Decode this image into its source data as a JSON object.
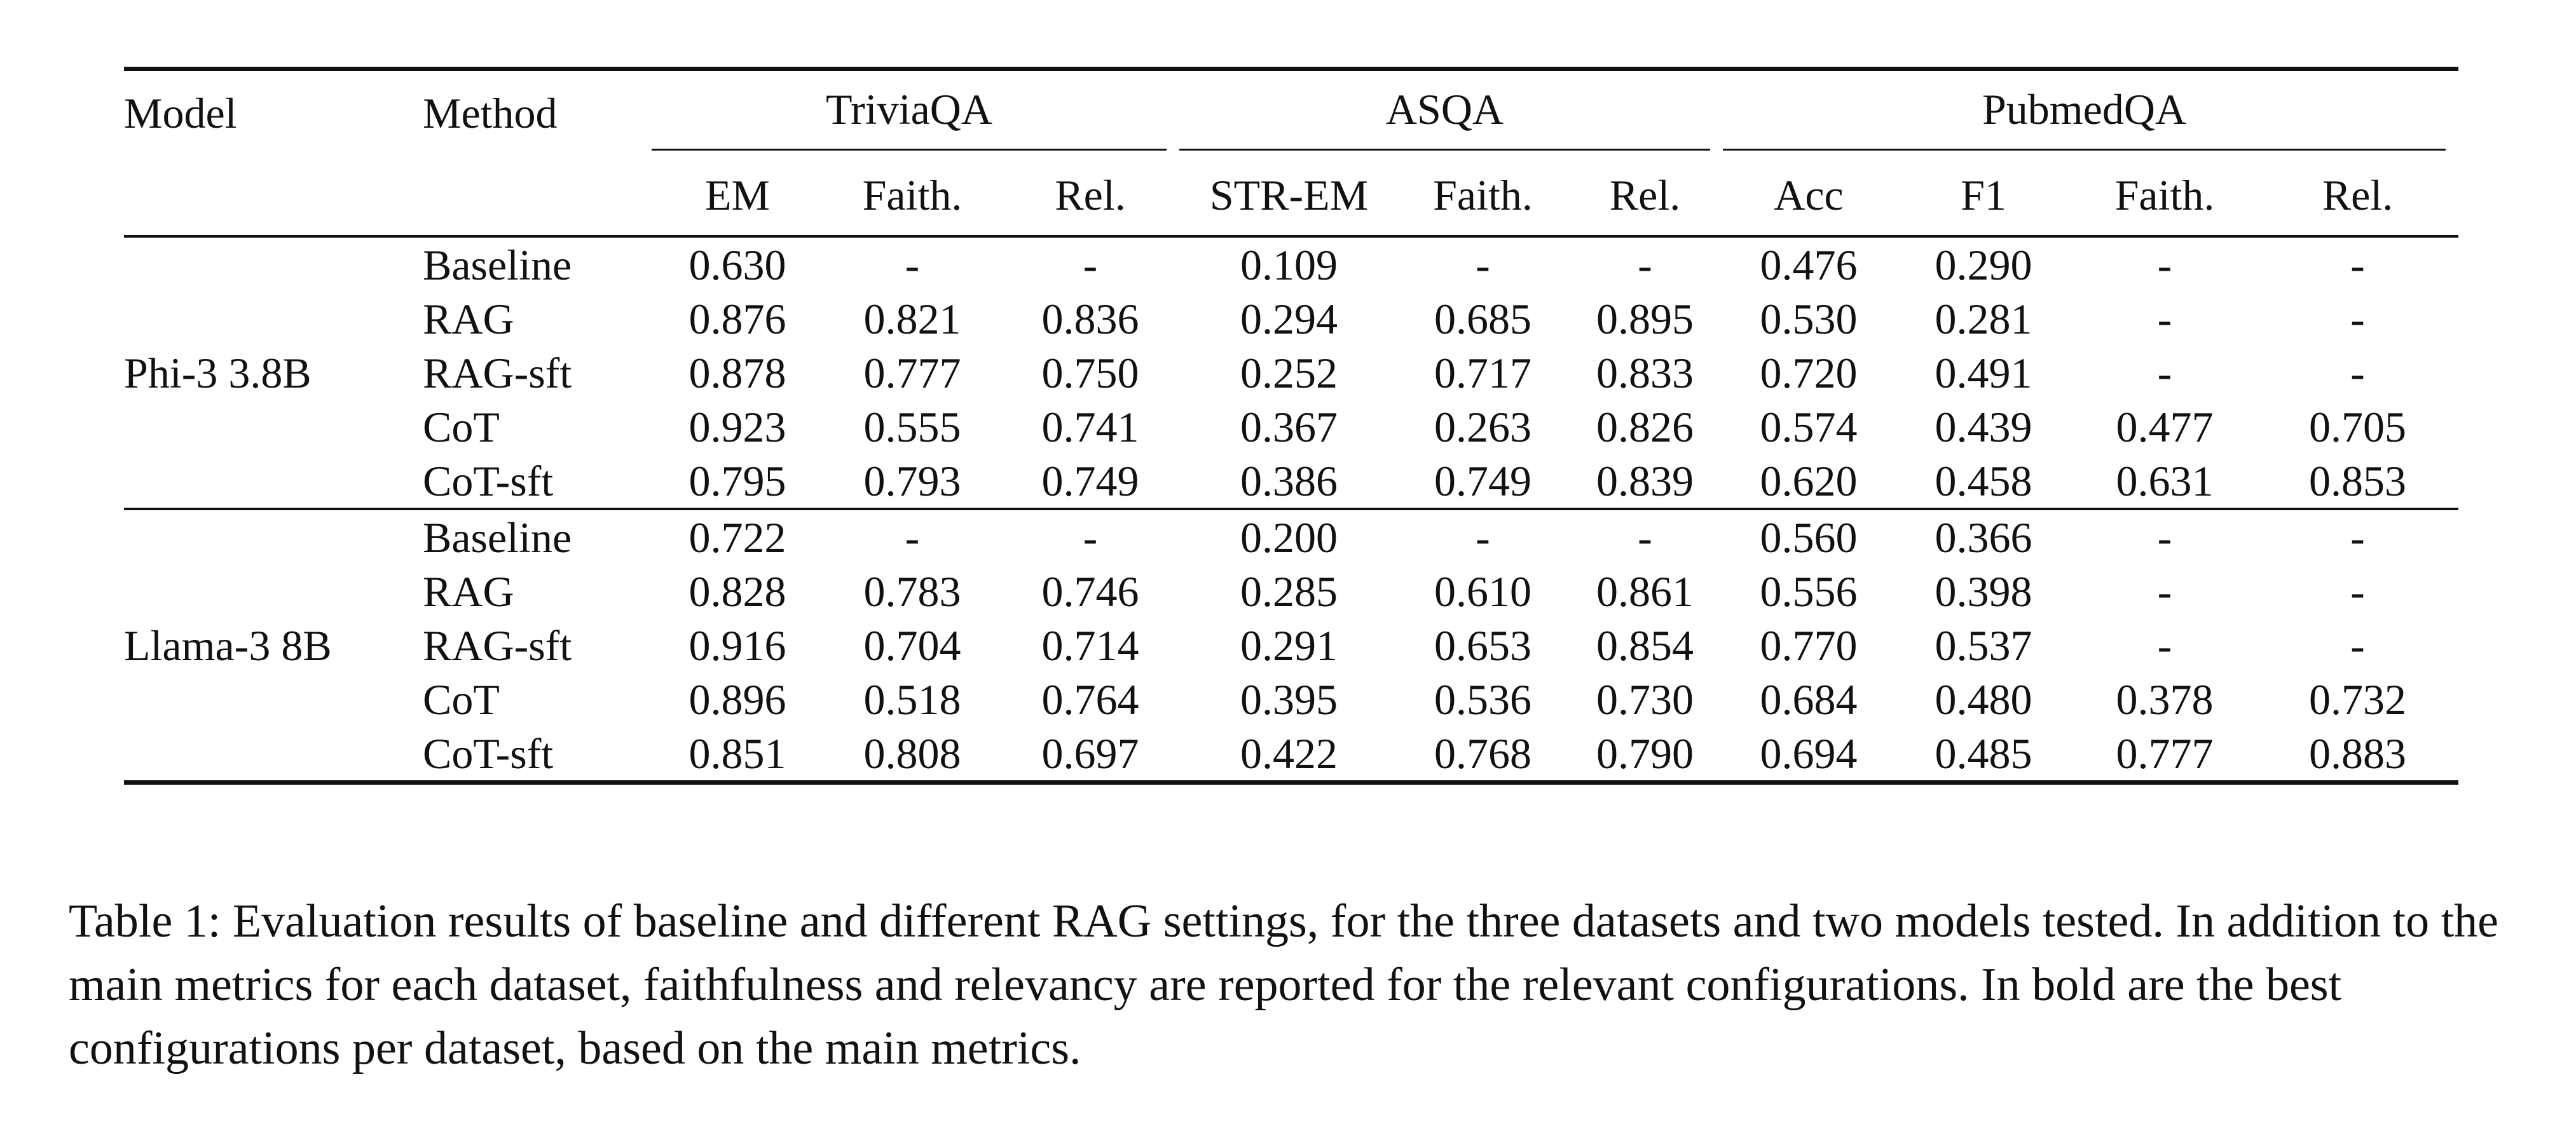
{
  "table": {
    "headers": {
      "model": "Model",
      "method": "Method",
      "groups": [
        {
          "name": "TriviaQA",
          "columns": [
            "EM",
            "Faith.",
            "Rel."
          ]
        },
        {
          "name": "ASQA",
          "columns": [
            "STR-EM",
            "Faith.",
            "Rel."
          ]
        },
        {
          "name": "PubmedQA",
          "columns": [
            "Acc",
            "F1",
            "Faith.",
            "Rel."
          ]
        }
      ]
    },
    "models": [
      {
        "name": "Phi-3 3.8B",
        "rows": [
          {
            "method": "Baseline",
            "values": [
              "0.630",
              "-",
              "-",
              "0.109",
              "-",
              "-",
              "0.476",
              "0.290",
              "-",
              "-"
            ],
            "bold": []
          },
          {
            "method": "RAG",
            "values": [
              "0.876",
              "0.821",
              "0.836",
              "0.294",
              "0.685",
              "0.895",
              "0.530",
              "0.281",
              "-",
              "-"
            ],
            "bold": []
          },
          {
            "method": "RAG-sft",
            "values": [
              "0.878",
              "0.777",
              "0.750",
              "0.252",
              "0.717",
              "0.833",
              "0.720",
              "0.491",
              "-",
              "-"
            ],
            "bold": [
              6,
              7
            ]
          },
          {
            "method": "CoT",
            "values": [
              "0.923",
              "0.555",
              "0.741",
              "0.367",
              "0.263",
              "0.826",
              "0.574",
              "0.439",
              "0.477",
              "0.705"
            ],
            "bold": [
              0
            ]
          },
          {
            "method": "CoT-sft",
            "values": [
              "0.795",
              "0.793",
              "0.749",
              "0.386",
              "0.749",
              "0.839",
              "0.620",
              "0.458",
              "0.631",
              "0.853"
            ],
            "bold": [
              3
            ]
          }
        ]
      },
      {
        "name": "Llama-3 8B",
        "rows": [
          {
            "method": "Baseline",
            "values": [
              "0.722",
              "-",
              "-",
              "0.200",
              "-",
              "-",
              "0.560",
              "0.366",
              "-",
              "-"
            ],
            "bold": []
          },
          {
            "method": "RAG",
            "values": [
              "0.828",
              "0.783",
              "0.746",
              "0.285",
              "0.610",
              "0.861",
              "0.556",
              "0.398",
              "-",
              "-"
            ],
            "bold": []
          },
          {
            "method": "RAG-sft",
            "values": [
              "0.916",
              "0.704",
              "0.714",
              "0.291",
              "0.653",
              "0.854",
              "0.770",
              "0.537",
              "-",
              "-"
            ],
            "bold": [
              0,
              6,
              7
            ]
          },
          {
            "method": "CoT",
            "values": [
              "0.896",
              "0.518",
              "0.764",
              "0.395",
              "0.536",
              "0.730",
              "0.684",
              "0.480",
              "0.378",
              "0.732"
            ],
            "bold": []
          },
          {
            "method": "CoT-sft",
            "values": [
              "0.851",
              "0.808",
              "0.697",
              "0.422",
              "0.768",
              "0.790",
              "0.694",
              "0.485",
              "0.777",
              "0.883"
            ],
            "bold": [
              3
            ]
          }
        ]
      }
    ]
  },
  "caption": "Table 1: Evaluation results of baseline and different RAG settings, for the three datasets and two models tested. In addition to the main metrics for each dataset, faithfulness and relevancy are reported for the relevant configurations. In bold are the best configurations per dataset, based on the main metrics."
}
